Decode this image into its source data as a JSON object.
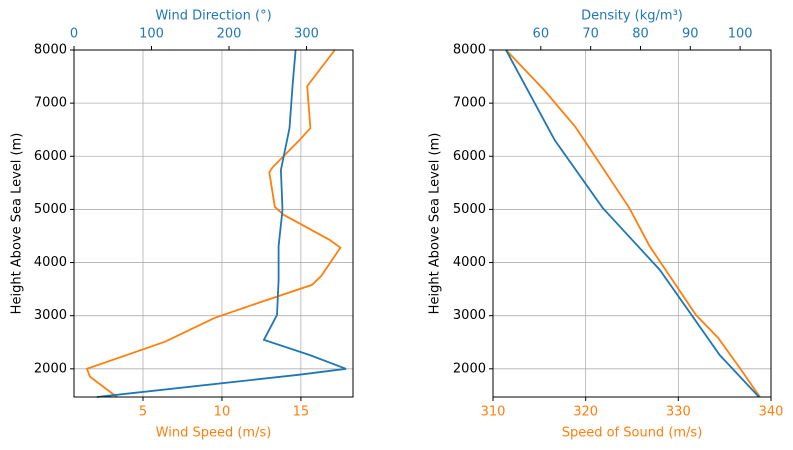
{
  "chart_data": [
    {
      "type": "line",
      "ylabel": "Height Above Sea Level (m)",
      "xlabel": "Wind Speed (m/s)",
      "x2label": "Wind Direction (°)",
      "ylim": [
        1470,
        8000
      ],
      "yticks": [
        2000,
        3000,
        4000,
        5000,
        6000,
        7000,
        8000
      ],
      "xlim": [
        0.63,
        18.3
      ],
      "xticks": [
        5,
        10,
        15
      ],
      "x2lim": [
        0,
        360
      ],
      "x2ticks": [
        0,
        100,
        200,
        300
      ],
      "grid": true,
      "xcolor": "#ff7f0e",
      "x2color": "#1f77b4",
      "series": [
        {
          "color": "#ff7f0e",
          "axis": "x",
          "x": [
            3.35,
            1.65,
            1.45,
            6.4,
            9.55,
            12.4,
            15.7,
            16.3,
            17.5,
            16.8,
            13.9,
            13.35,
            13.0,
            13.2,
            14.9,
            15.6,
            15.4,
            17.15
          ],
          "y": [
            1470,
            1850,
            2000,
            2510,
            2960,
            3250,
            3580,
            3750,
            4280,
            4430,
            4900,
            5050,
            5700,
            5790,
            6300,
            6530,
            7320,
            8000
          ]
        },
        {
          "color": "#1f77b4",
          "axis": "x2",
          "x": [
            29.6,
            291,
            351,
            304,
            245,
            262,
            264,
            264,
            269,
            267,
            278,
            282,
            286
          ],
          "y": [
            1470,
            1890,
            2000,
            2260,
            2545,
            3015,
            3670,
            4310,
            4990,
            5740,
            6530,
            7340,
            8000
          ]
        }
      ]
    },
    {
      "type": "line",
      "ylabel": "Height Above Sea Level (m)",
      "xlabel": "Speed of Sound (m/s)",
      "x2label": "Density (kg/m³)",
      "ylim": [
        1470,
        8000
      ],
      "yticks": [
        2000,
        3000,
        4000,
        5000,
        6000,
        7000,
        8000
      ],
      "xlim": [
        310,
        340
      ],
      "xticks": [
        310,
        320,
        330,
        340
      ],
      "x2lim": [
        50.4,
        106.2
      ],
      "x2ticks": [
        60,
        70,
        80,
        90,
        100
      ],
      "grid": true,
      "xcolor": "#ff7f0e",
      "x2color": "#1f77b4",
      "series": [
        {
          "color": "#ff7f0e",
          "axis": "x",
          "x": [
            338.8,
            336.7,
            334.3,
            331.9,
            326.9,
            324.7,
            322.0,
            318.9,
            315.5,
            311.4
          ],
          "y": [
            1470,
            2000,
            2580,
            3015,
            4310,
            5030,
            5740,
            6550,
            7250,
            8000
          ]
        },
        {
          "color": "#1f77b4",
          "axis": "x2",
          "x": [
            103.8,
            95.9,
            83.9,
            72.4,
            62.8,
            53.0
          ],
          "y": [
            1470,
            2260,
            3860,
            5030,
            6300,
            8000
          ]
        }
      ]
    }
  ]
}
